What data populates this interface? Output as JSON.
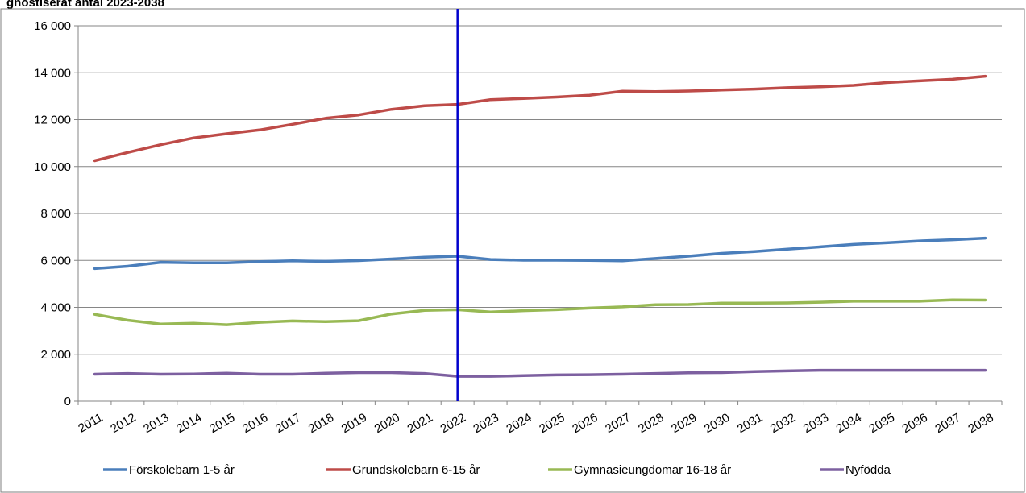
{
  "chart_data": {
    "type": "line",
    "title": "gnostiserat antal 2023-2038",
    "xlabel": "",
    "ylabel": "",
    "ylim": [
      0,
      16000
    ],
    "yticks": [
      0,
      2000,
      4000,
      6000,
      8000,
      10000,
      12000,
      14000,
      16000
    ],
    "ytick_labels": [
      "0",
      "2 000",
      "4 000",
      "6 000",
      "8 000",
      "10 000",
      "12 000",
      "14 000",
      "16 000"
    ],
    "x": [
      "2011",
      "2012",
      "2013",
      "2014",
      "2015",
      "2016",
      "2017",
      "2018",
      "2019",
      "2020",
      "2021",
      "2022",
      "2023",
      "2024",
      "2025",
      "2026",
      "2027",
      "2028",
      "2029",
      "2030",
      "2031",
      "2032",
      "2033",
      "2034",
      "2035",
      "2036",
      "2037",
      "2038"
    ],
    "grid": true,
    "legend_position": "bottom",
    "marker_line": {
      "x": "2022",
      "color": "#0000CC"
    },
    "series": [
      {
        "name": "Förskolebarn 1-5 år",
        "color": "#4A7EBB",
        "values": [
          5650,
          5750,
          5920,
          5900,
          5900,
          5950,
          5980,
          5960,
          5990,
          6060,
          6140,
          6180,
          6040,
          6010,
          6010,
          6000,
          5980,
          6080,
          6180,
          6300,
          6380,
          6480,
          6580,
          6680,
          6750,
          6830,
          6880,
          6950
        ]
      },
      {
        "name": "Grundskolebarn 6-15 år",
        "color": "#BE4B48",
        "values": [
          10250,
          10600,
          10930,
          11220,
          11400,
          11560,
          11800,
          12060,
          12200,
          12440,
          12590,
          12650,
          12850,
          12900,
          12960,
          13040,
          13210,
          13190,
          13220,
          13260,
          13300,
          13360,
          13400,
          13460,
          13580,
          13650,
          13720,
          13850
        ]
      },
      {
        "name": "Gymnasieungdomar 16-18 år",
        "color": "#98B954",
        "values": [
          3700,
          3450,
          3290,
          3320,
          3260,
          3360,
          3420,
          3390,
          3430,
          3720,
          3870,
          3900,
          3800,
          3860,
          3900,
          3970,
          4020,
          4110,
          4120,
          4180,
          4180,
          4190,
          4220,
          4260,
          4260,
          4260,
          4320,
          4310
        ]
      },
      {
        "name": "Nyfödda",
        "color": "#7D60A0",
        "values": [
          1150,
          1180,
          1150,
          1160,
          1190,
          1150,
          1150,
          1190,
          1220,
          1220,
          1180,
          1060,
          1060,
          1090,
          1120,
          1130,
          1150,
          1180,
          1210,
          1220,
          1260,
          1290,
          1320,
          1320,
          1320,
          1320,
          1320,
          1320
        ]
      }
    ]
  }
}
